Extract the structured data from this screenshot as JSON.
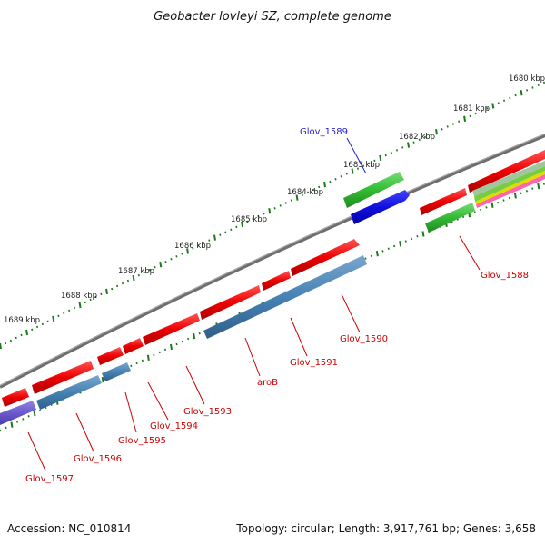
{
  "title": "Geobacter lovleyi SZ, complete genome",
  "footer": {
    "accession": "Accession: NC_010814",
    "summary": "Topology: circular; Length: 3,917,761 bp; Genes: 3,658"
  },
  "ruler_ticks": [
    "1680 kbp",
    "1681 kbp",
    "1682 kbp",
    "1683 kbp",
    "1684 kbp",
    "1685 kbp",
    "1686 kbp",
    "1687 kbp",
    "1688 kbp",
    "1689 kbp"
  ],
  "gene_labels": [
    {
      "text": "Glov_1589",
      "color": "#2222cc"
    },
    {
      "text": "Glov_1588",
      "color": "#cc0000"
    },
    {
      "text": "Glov_1590",
      "color": "#cc0000"
    },
    {
      "text": "Glov_1591",
      "color": "#cc0000"
    },
    {
      "text": "aroB",
      "color": "#cc0000"
    },
    {
      "text": "Glov_1593",
      "color": "#cc0000"
    },
    {
      "text": "Glov_1594",
      "color": "#cc0000"
    },
    {
      "text": "Glov_1595",
      "color": "#cc0000"
    },
    {
      "text": "Glov_1596",
      "color": "#cc0000"
    },
    {
      "text": "Glov_1597",
      "color": "#cc0000"
    }
  ],
  "colors": {
    "backbone": "#808080",
    "forward_gene": "#ee1111",
    "reverse_gene": "#4682b4",
    "highlight_green": "#33bb33",
    "highlight_blue": "#1111dd",
    "purple_gene": "#6a5acd",
    "tick_green": "#1a7a1a"
  }
}
